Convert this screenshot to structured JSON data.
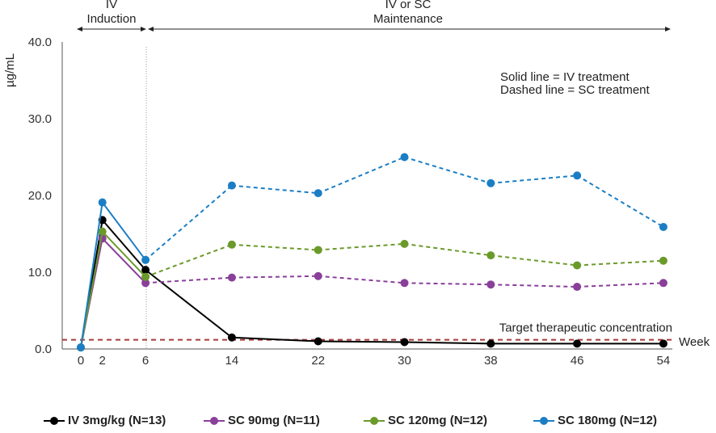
{
  "chart_data": {
    "type": "line",
    "title": "",
    "xlabel": "Week",
    "ylabel": "µg/mL",
    "x": [
      0,
      2,
      6,
      14,
      22,
      30,
      38,
      46,
      54
    ],
    "x_tick_labels": [
      "0",
      "2",
      "6",
      "14",
      "22",
      "30",
      "38",
      "46",
      "54"
    ],
    "y_tick_labels": [
      "0.0",
      "10.0",
      "20.0",
      "30.0",
      "40.0"
    ],
    "ylim": [
      0,
      40
    ],
    "grid": false,
    "legend_position": "bottom",
    "phases": {
      "induction": [
        "IV",
        "Induction"
      ],
      "maintenance": [
        "IV or SC",
        "Maintenance"
      ]
    },
    "notes": [
      "Solid line = IV treatment",
      "Dashed line = SC treatment"
    ],
    "target": {
      "label": "Target therapeutic concentration",
      "value": 1.2,
      "color": "#a83a3a"
    },
    "series": [
      {
        "name": "IV 3mg/kg (N=13)",
        "color": "#000000",
        "x": [
          0,
          2,
          6,
          14,
          22,
          30,
          38,
          46,
          54
        ],
        "values": [
          0.2,
          16.8,
          10.3,
          1.5,
          1.0,
          0.9,
          0.7,
          0.7,
          0.7
        ],
        "solid_until_index": 8
      },
      {
        "name": "SC 90mg (N=11)",
        "color": "#8a3f9a",
        "x": [
          0,
          2,
          6,
          14,
          22,
          30,
          38,
          46,
          54
        ],
        "values": [
          0.2,
          14.4,
          8.6,
          9.3,
          9.5,
          8.6,
          8.4,
          8.1,
          8.6
        ],
        "solid_until_index": 2
      },
      {
        "name": "SC 120mg (N=12)",
        "color": "#6a9a2a",
        "x": [
          0,
          2,
          6,
          14,
          22,
          30,
          38,
          46,
          54
        ],
        "values": [
          0.2,
          15.3,
          9.4,
          13.6,
          12.9,
          13.7,
          12.2,
          10.9,
          11.5
        ],
        "solid_until_index": 2
      },
      {
        "name": "SC 180mg (N=12)",
        "color": "#1b7ec5",
        "x": [
          0,
          2,
          6,
          14,
          22,
          30,
          38,
          46,
          54
        ],
        "values": [
          0.2,
          19.1,
          11.6,
          21.3,
          20.3,
          25.0,
          21.6,
          22.6,
          15.9
        ],
        "solid_until_index": 2
      }
    ]
  }
}
